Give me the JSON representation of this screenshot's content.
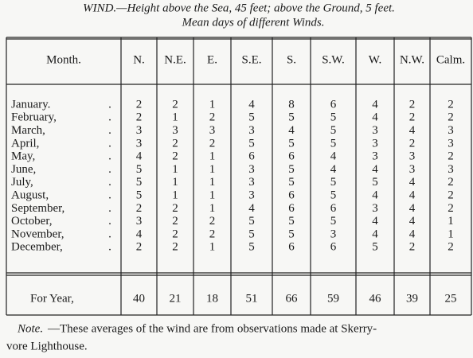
{
  "header": {
    "title": "WIND.—Height above the Sea, 45 feet; above the Ground, 5 feet.",
    "subtitle": "Mean days of different Winds."
  },
  "table": {
    "columns": [
      "Month.",
      "N.",
      "N.E.",
      "E.",
      "S.E.",
      "S.",
      "S.W.",
      "W.",
      "N.W.",
      "Calm."
    ],
    "rows": [
      [
        "January.",
        2,
        2,
        1,
        4,
        8,
        6,
        4,
        2,
        2
      ],
      [
        "February,",
        2,
        1,
        2,
        5,
        5,
        5,
        4,
        2,
        2
      ],
      [
        "March,",
        3,
        3,
        3,
        3,
        4,
        5,
        3,
        4,
        3
      ],
      [
        "April,",
        3,
        2,
        2,
        5,
        5,
        5,
        3,
        2,
        3
      ],
      [
        "May,",
        4,
        2,
        1,
        6,
        6,
        4,
        3,
        3,
        2
      ],
      [
        "June,",
        5,
        1,
        1,
        3,
        5,
        4,
        4,
        3,
        3
      ],
      [
        "July,",
        5,
        1,
        1,
        3,
        5,
        5,
        5,
        4,
        2
      ],
      [
        "August,",
        5,
        1,
        1,
        3,
        6,
        5,
        4,
        4,
        2
      ],
      [
        "September,",
        2,
        2,
        1,
        4,
        6,
        6,
        3,
        4,
        2
      ],
      [
        "October,",
        3,
        2,
        2,
        5,
        5,
        5,
        4,
        4,
        1
      ],
      [
        "November,",
        4,
        2,
        2,
        5,
        5,
        3,
        4,
        4,
        1
      ],
      [
        "December,",
        2,
        2,
        1,
        5,
        6,
        6,
        5,
        2,
        2
      ]
    ],
    "total": [
      "For Year,",
      40,
      21,
      18,
      51,
      66,
      59,
      46,
      39,
      25
    ]
  },
  "note": {
    "label": "Note.",
    "lines": [
      "—These averages of the wind are from observations made at Skerry-",
      "vore Lighthouse."
    ]
  }
}
